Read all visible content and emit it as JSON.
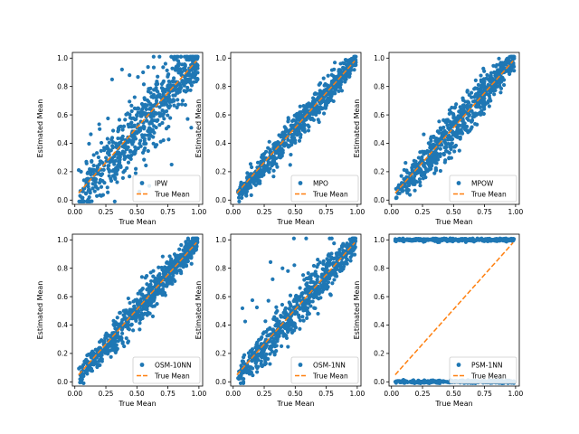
{
  "colors": {
    "scatter": "#1f77b4",
    "true_mean": "#ff7f0e",
    "axis": "#000000",
    "legend_border": "#cccccc"
  },
  "chart_data": [
    {
      "type": "scatter",
      "method": "IPW",
      "xlabel": "True Mean",
      "ylabel": "Estimated Mean",
      "xlim": [
        0,
        1
      ],
      "ylim": [
        0,
        1
      ],
      "xticks": [
        "0.00",
        "0.25",
        "0.50",
        "0.75",
        "1.00"
      ],
      "yticks": [
        "0.0",
        "0.2",
        "0.4",
        "0.6",
        "0.8",
        "1.0"
      ],
      "legend": [
        "IPW",
        "True Mean"
      ],
      "legend_loc": "lower-right",
      "pattern": "wide",
      "spread": 0.14,
      "seed": 11,
      "sample_points": [
        [
          0.05,
          0.2
        ],
        [
          0.2,
          0.5
        ],
        [
          0.3,
          0.85
        ],
        [
          0.38,
          0.92
        ],
        [
          0.52,
          0.06
        ],
        [
          0.55,
          0.9
        ],
        [
          0.6,
          0.1
        ],
        [
          0.78,
          0.25
        ],
        [
          0.95,
          0.95
        ]
      ]
    },
    {
      "type": "scatter",
      "method": "MPO",
      "xlabel": "True Mean",
      "ylabel": "Estimated Mean",
      "xlim": [
        0,
        1
      ],
      "ylim": [
        0,
        1
      ],
      "xticks": [
        "0.00",
        "0.25",
        "0.50",
        "0.75",
        "1.00"
      ],
      "yticks": [
        "0.0",
        "0.2",
        "0.4",
        "0.6",
        "0.8",
        "1.0"
      ],
      "legend": [
        "MPO",
        "True Mean"
      ],
      "legend_loc": "lower-right",
      "pattern": "tight",
      "spread": 0.045,
      "seed": 23,
      "sample_points": [
        [
          0.05,
          0.04
        ],
        [
          0.25,
          0.2
        ],
        [
          0.5,
          0.52
        ],
        [
          0.75,
          0.78
        ],
        [
          0.97,
          0.97
        ]
      ]
    },
    {
      "type": "scatter",
      "method": "MPOW",
      "xlabel": "True Mean",
      "ylabel": "Estimated Mean",
      "xlim": [
        0,
        1
      ],
      "ylim": [
        0,
        1
      ],
      "xticks": [
        "0.00",
        "0.25",
        "0.50",
        "0.75",
        "1.00"
      ],
      "yticks": [
        "0.0",
        "0.2",
        "0.4",
        "0.6",
        "0.8",
        "1.0"
      ],
      "legend": [
        "MPOW",
        "True Mean"
      ],
      "legend_loc": "lower-right",
      "pattern": "medium",
      "spread": 0.06,
      "seed": 37,
      "sample_points": [
        [
          0.05,
          0.05
        ],
        [
          0.3,
          0.25
        ],
        [
          0.5,
          0.55
        ],
        [
          0.75,
          0.8
        ],
        [
          0.98,
          0.96
        ]
      ]
    },
    {
      "type": "scatter",
      "method": "OSM-10NN",
      "xlabel": "True Mean",
      "ylabel": "Estimated Mean",
      "xlim": [
        0,
        1
      ],
      "ylim": [
        0,
        1
      ],
      "xticks": [
        "0.00",
        "0.25",
        "0.50",
        "0.75",
        "1.00"
      ],
      "yticks": [
        "0.0",
        "0.2",
        "0.4",
        "0.6",
        "0.8",
        "1.0"
      ],
      "legend": [
        "OSM-10NN",
        "True Mean"
      ],
      "legend_loc": "lower-right",
      "pattern": "medium",
      "spread": 0.05,
      "seed": 41,
      "sample_points": [
        [
          0.05,
          0.04
        ],
        [
          0.3,
          0.32
        ],
        [
          0.5,
          0.5
        ],
        [
          0.75,
          0.72
        ],
        [
          0.98,
          0.97
        ]
      ]
    },
    {
      "type": "scatter",
      "method": "OSM-1NN",
      "xlabel": "True Mean",
      "ylabel": "Estimated Mean",
      "xlim": [
        0,
        1
      ],
      "ylim": [
        0,
        1
      ],
      "xticks": [
        "0.00",
        "0.25",
        "0.50",
        "0.75",
        "1.00"
      ],
      "yticks": [
        "0.0",
        "0.2",
        "0.4",
        "0.6",
        "0.8",
        "1.0"
      ],
      "legend": [
        "OSM-1NN",
        "True Mean"
      ],
      "legend_loc": "lower-right",
      "pattern": "medium_outliers",
      "spread": 0.06,
      "seed": 53,
      "sample_points": [
        [
          0.05,
          0.04
        ],
        [
          0.3,
          0.25
        ],
        [
          0.5,
          0.5
        ],
        [
          0.75,
          0.8
        ],
        [
          0.98,
          0.98
        ]
      ]
    },
    {
      "type": "scatter",
      "method": "PSM-1NN",
      "xlabel": "True Mean",
      "ylabel": "Estimated Mean",
      "xlim": [
        0,
        1
      ],
      "ylim": [
        0,
        1
      ],
      "xticks": [
        "0.00",
        "0.25",
        "0.50",
        "0.75",
        "1.00"
      ],
      "yticks": [
        "0.0",
        "0.2",
        "0.4",
        "0.6",
        "0.8",
        "1.0"
      ],
      "legend": [
        "PSM-1NN",
        "True Mean"
      ],
      "legend_loc": "lower-right",
      "pattern": "binary",
      "spread": 0.005,
      "seed": 67,
      "sample_points": [
        [
          0.05,
          1.0
        ],
        [
          0.5,
          1.0
        ],
        [
          0.98,
          1.0
        ],
        [
          0.1,
          0.0
        ],
        [
          0.5,
          0.0
        ],
        [
          0.9,
          0.0
        ]
      ]
    }
  ]
}
